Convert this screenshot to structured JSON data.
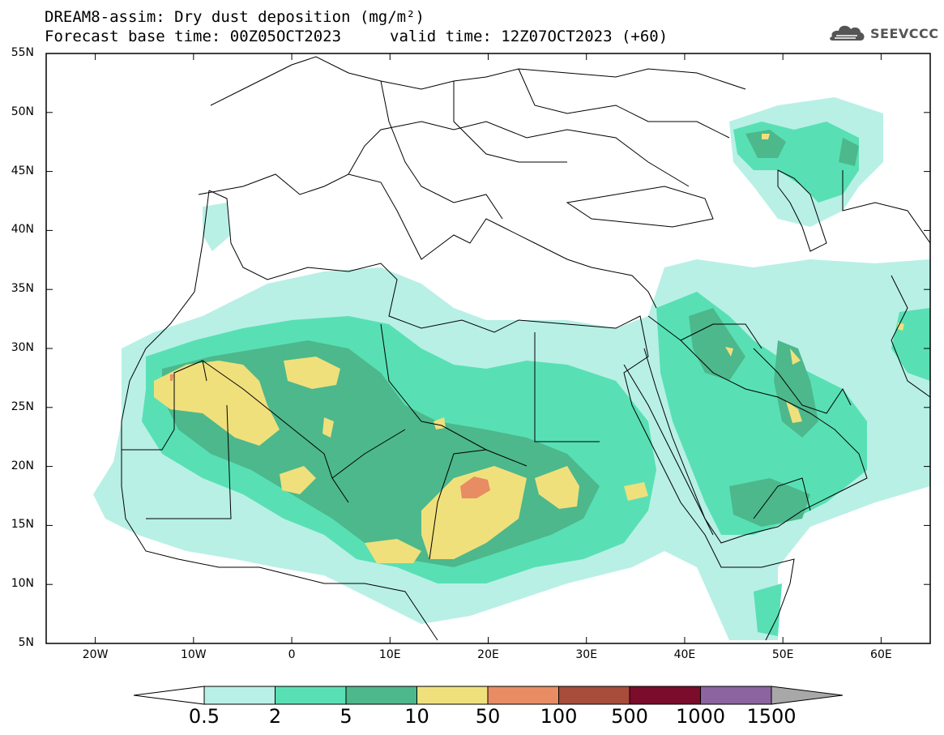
{
  "header": {
    "title_line1": "DREAM8-assim: Dry dust deposition (mg/m²)",
    "title_line2": "Forecast base time: 00Z05OCT2023",
    "valid_text": "valid time: 12Z07OCT2023 (+60)",
    "logo_text": "SEEVCCC",
    "logo_icon": "cloud-icon"
  },
  "map": {
    "lon_range": [
      -25,
      65
    ],
    "lat_range": [
      5,
      55
    ],
    "lat_labels": [
      "55N",
      "50N",
      "45N",
      "40N",
      "35N",
      "30N",
      "25N",
      "20N",
      "15N",
      "10N",
      "5N"
    ],
    "lat_values": [
      55,
      50,
      45,
      40,
      35,
      30,
      25,
      20,
      15,
      10,
      5
    ],
    "lon_labels": [
      "20W",
      "10W",
      "0",
      "10E",
      "20E",
      "30E",
      "40E",
      "50E",
      "60E"
    ],
    "lon_values": [
      -20,
      -10,
      0,
      10,
      20,
      30,
      40,
      50,
      60
    ]
  },
  "colorbar": {
    "thresholds": [
      "0.5",
      "2",
      "5",
      "10",
      "50",
      "100",
      "500",
      "1000",
      "1500"
    ],
    "colors": [
      "#b8f0e6",
      "#58e0b4",
      "#4cb88c",
      "#f0e07c",
      "#e88c64",
      "#a84c3c",
      "#7c0c2c",
      "#8c64a0",
      "#a8a8a8"
    ],
    "under_color": "#ffffff",
    "over_color": "#a8a8a8"
  }
}
